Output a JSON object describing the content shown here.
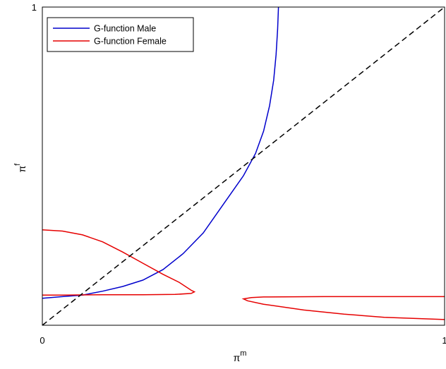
{
  "chart_data": {
    "type": "line",
    "title": "",
    "xlabel": {
      "base": "π",
      "sup": "m"
    },
    "ylabel": {
      "base": "π",
      "sup": "f"
    },
    "xlim": [
      0,
      1
    ],
    "ylim": [
      0,
      1
    ],
    "x_ticks": [
      {
        "value": 0,
        "label": "0"
      },
      {
        "value": 1,
        "label": "1"
      }
    ],
    "y_ticks": [
      {
        "value": 1,
        "label": "1"
      }
    ],
    "grid": false,
    "legend_position": "top-left",
    "series": [
      {
        "name": "G-function Male",
        "color": "#0000cc",
        "style": "solid",
        "points": [
          [
            0,
            0.085
          ],
          [
            0.05,
            0.09
          ],
          [
            0.1,
            0.095
          ],
          [
            0.15,
            0.107
          ],
          [
            0.2,
            0.122
          ],
          [
            0.25,
            0.142
          ],
          [
            0.3,
            0.175
          ],
          [
            0.35,
            0.225
          ],
          [
            0.4,
            0.29
          ],
          [
            0.45,
            0.38
          ],
          [
            0.5,
            0.47
          ],
          [
            0.53,
            0.54
          ],
          [
            0.55,
            0.61
          ],
          [
            0.565,
            0.69
          ],
          [
            0.575,
            0.77
          ],
          [
            0.581,
            0.85
          ],
          [
            0.585,
            0.93
          ],
          [
            0.587,
            1.0
          ]
        ]
      },
      {
        "name": "G-function Female",
        "color": "#e60000",
        "style": "solid",
        "points": [
          [
            0,
            0.3
          ],
          [
            0.05,
            0.296
          ],
          [
            0.1,
            0.284
          ],
          [
            0.15,
            0.262
          ],
          [
            0.2,
            0.23
          ],
          [
            0.25,
            0.195
          ],
          [
            0.3,
            0.16
          ],
          [
            0.34,
            0.135
          ],
          [
            0.37,
            0.11
          ],
          [
            0.378,
            0.105
          ],
          [
            0.37,
            0.1
          ],
          [
            0.33,
            0.097
          ],
          [
            0.25,
            0.096
          ],
          [
            0.15,
            0.096
          ],
          [
            0.05,
            0.095
          ],
          [
            0,
            0.095
          ]
        ]
      },
      {
        "name": "",
        "color": "#e60000",
        "style": "solid",
        "points": [
          [
            1.0,
            0.09
          ],
          [
            0.85,
            0.09
          ],
          [
            0.7,
            0.09
          ],
          [
            0.55,
            0.089
          ],
          [
            0.52,
            0.087
          ],
          [
            0.5,
            0.083
          ],
          [
            0.51,
            0.077
          ],
          [
            0.55,
            0.066
          ],
          [
            0.65,
            0.048
          ],
          [
            0.75,
            0.035
          ],
          [
            0.85,
            0.025
          ],
          [
            1.0,
            0.018
          ]
        ]
      },
      {
        "name": "",
        "color": "#000000",
        "style": "dashed",
        "points": [
          [
            0,
            0
          ],
          [
            1,
            1
          ]
        ]
      }
    ]
  }
}
